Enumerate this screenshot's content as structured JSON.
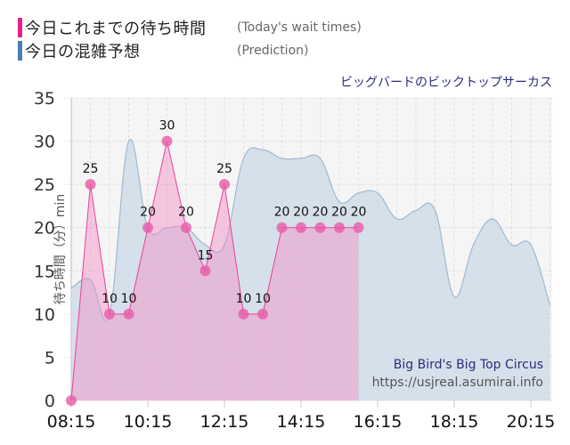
{
  "legend": {
    "items": [
      {
        "label": "今日これまでの待ち時間",
        "sub": "(Today's wait times)",
        "color": "#e8208c"
      },
      {
        "label": "今日の混雑予想",
        "sub": "(Prediction)",
        "color": "#4a7fb0"
      }
    ]
  },
  "attraction_name": "ビッグバードのビックトップサーカス",
  "credit": {
    "name": "Big Bird's Big Top Circus",
    "url": "https://usjreal.asumirai.info"
  },
  "y_axis_label": "待ち時間（分）min",
  "colors": {
    "today_line": "#e8409c",
    "today_fill": "#f48cc4",
    "today_point": "#ea5aa8",
    "prediction_line": "#9fb9d1",
    "prediction_fill": "#c9d8e5",
    "plot_bg": "#f5f5f5",
    "grid": "#cccccc"
  },
  "chart_data": {
    "type": "area",
    "title": "ビッグバードのビックトップサーカス",
    "xlabel": "",
    "ylabel": "待ち時間（分）min",
    "ylim": [
      0,
      35
    ],
    "yticks": [
      0,
      5,
      10,
      15,
      20,
      25,
      30,
      35
    ],
    "xtick_labels": [
      "08:15",
      "10:15",
      "12:15",
      "14:15",
      "16:15",
      "18:15",
      "20:15"
    ],
    "grid": true,
    "legend_position": "top-left",
    "series": [
      {
        "name": "今日これまでの待ち時間 (Today's wait times)",
        "x": [
          "08:15",
          "08:45",
          "09:15",
          "09:45",
          "10:15",
          "10:45",
          "11:15",
          "11:45",
          "12:15",
          "12:45",
          "13:15",
          "13:45",
          "14:15",
          "14:45",
          "15:15",
          "15:45"
        ],
        "values": [
          0,
          25,
          10,
          10,
          20,
          30,
          20,
          15,
          25,
          10,
          10,
          20,
          20,
          20,
          20,
          20
        ]
      },
      {
        "name": "今日の混雑予想 (Prediction)",
        "x": [
          "08:15",
          "08:45",
          "09:15",
          "09:45",
          "10:15",
          "10:45",
          "11:15",
          "11:45",
          "12:15",
          "12:45",
          "13:15",
          "13:45",
          "14:15",
          "14:45",
          "15:15",
          "15:45",
          "16:15",
          "16:45",
          "17:15",
          "17:45",
          "18:15",
          "18:45",
          "19:15",
          "19:45",
          "20:15",
          "20:45"
        ],
        "values": [
          13,
          14,
          10,
          30,
          20,
          20,
          20,
          18,
          18,
          28,
          29,
          28,
          28,
          28,
          23,
          24,
          24,
          21,
          22,
          22,
          12,
          18,
          21,
          18,
          18,
          11
        ]
      }
    ]
  }
}
